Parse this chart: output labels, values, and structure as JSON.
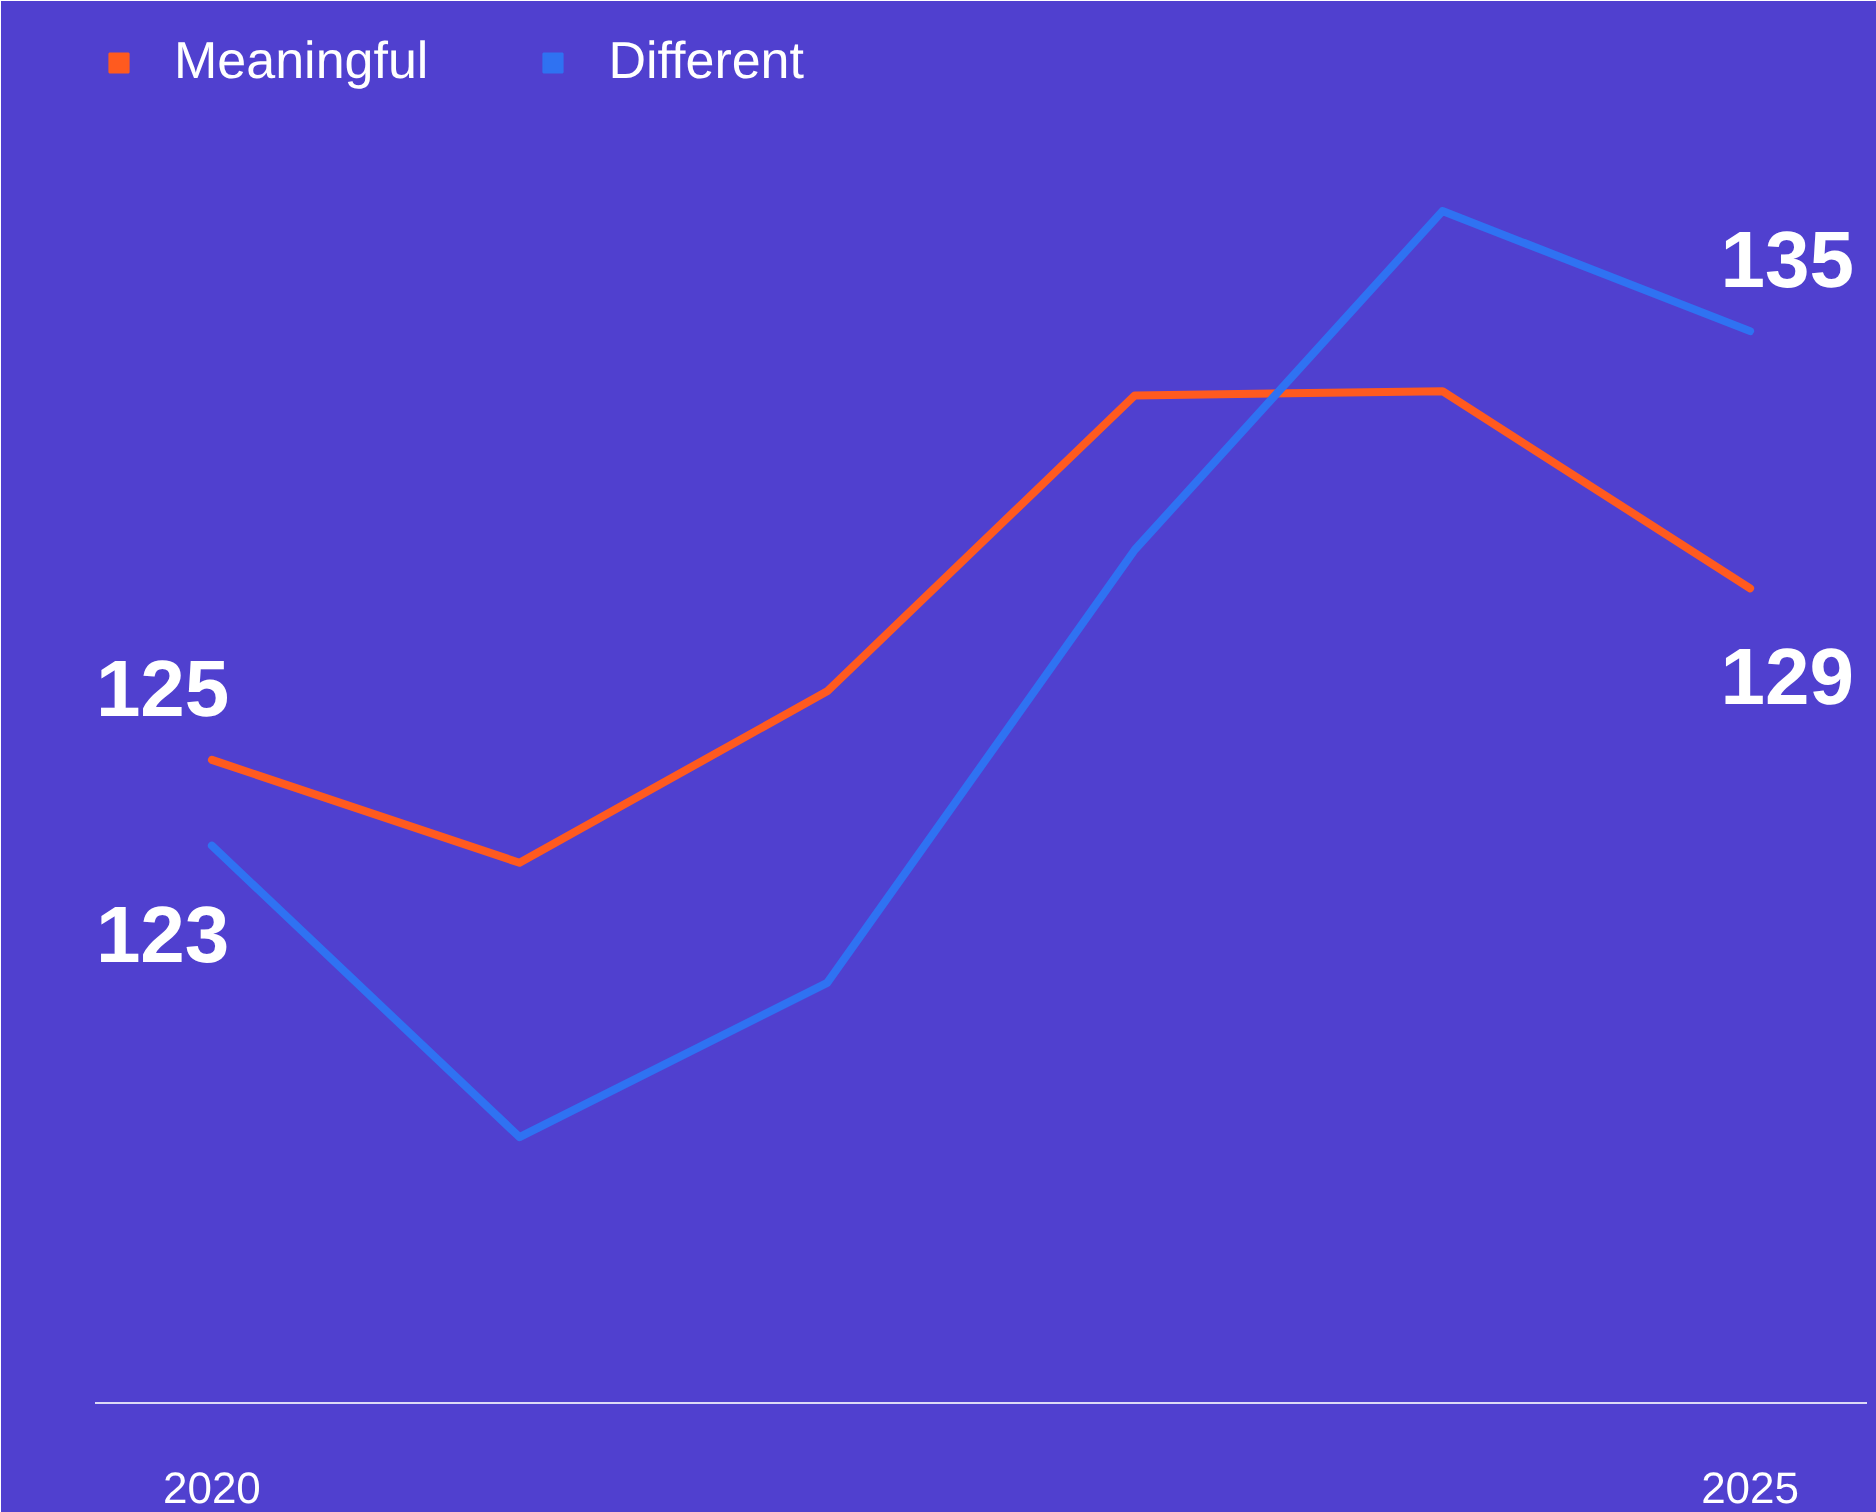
{
  "chart_data": {
    "type": "line",
    "x": [
      2020,
      2021,
      2022,
      2023,
      2024,
      2025
    ],
    "series": [
      {
        "name": "Meaningful",
        "color": "#ff5a1f",
        "values": [
          125,
          122.6,
          126.6,
          133.5,
          133.6,
          129
        ],
        "value_labels": [
          "125",
          null,
          null,
          null,
          null,
          "129"
        ]
      },
      {
        "name": "Different",
        "color": "#2f72f2",
        "values": [
          123,
          116.2,
          119.8,
          129.9,
          137.8,
          135
        ],
        "value_labels": [
          "123",
          null,
          null,
          null,
          null,
          "135"
        ]
      }
    ],
    "xlim": [
      2019.62,
      2025.38
    ],
    "xticks": [
      2020,
      2025
    ],
    "ylim": [
      110,
      142
    ],
    "tick_labels": "x",
    "grid": false,
    "legend": "top left",
    "line_style": "solid",
    "marker": "none"
  }
}
